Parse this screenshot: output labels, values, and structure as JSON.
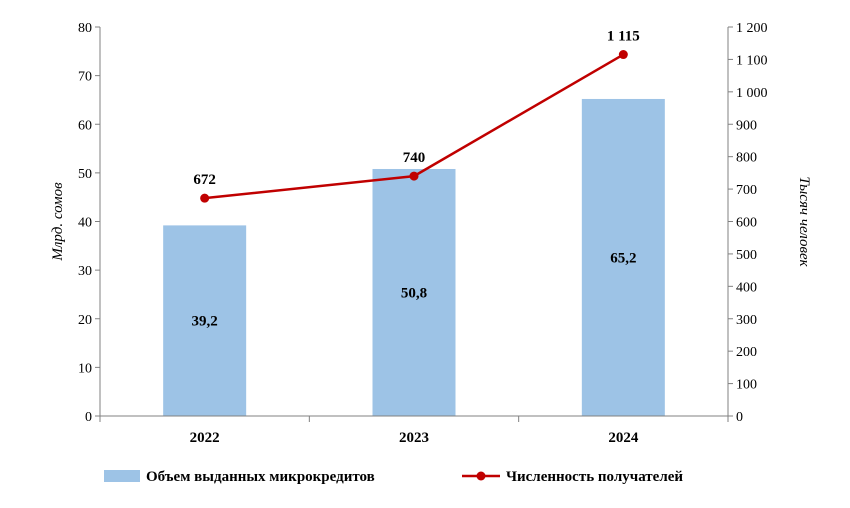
{
  "chart_data": {
    "type": "bar",
    "categories": [
      "2022",
      "2023",
      "2024"
    ],
    "series": [
      {
        "name": "Объем выданных микрокредитов",
        "type": "bar",
        "axis": "left",
        "values": [
          39.2,
          50.8,
          65.2
        ],
        "labels": [
          "39,2",
          "50,8",
          "65,2"
        ],
        "color": "#9DC3E6"
      },
      {
        "name": "Численность получателей",
        "type": "line",
        "axis": "right",
        "values": [
          672,
          740,
          1115
        ],
        "labels": [
          "672",
          "740",
          "1 115"
        ],
        "color": "#C00000"
      }
    ],
    "ylabel": "Млрд. сомов",
    "y2label": "Тысяч человек",
    "ylim": [
      0,
      80
    ],
    "y2lim": [
      0,
      1200
    ],
    "yticks": [
      "0",
      "10",
      "20",
      "30",
      "40",
      "50",
      "60",
      "70",
      "80"
    ],
    "y2ticks": [
      "0",
      "100",
      "200",
      "300",
      "400",
      "500",
      "600",
      "700",
      "800",
      "900",
      "1 000",
      "1 100",
      "1 200"
    ],
    "grid": false,
    "legend": "bottom"
  }
}
